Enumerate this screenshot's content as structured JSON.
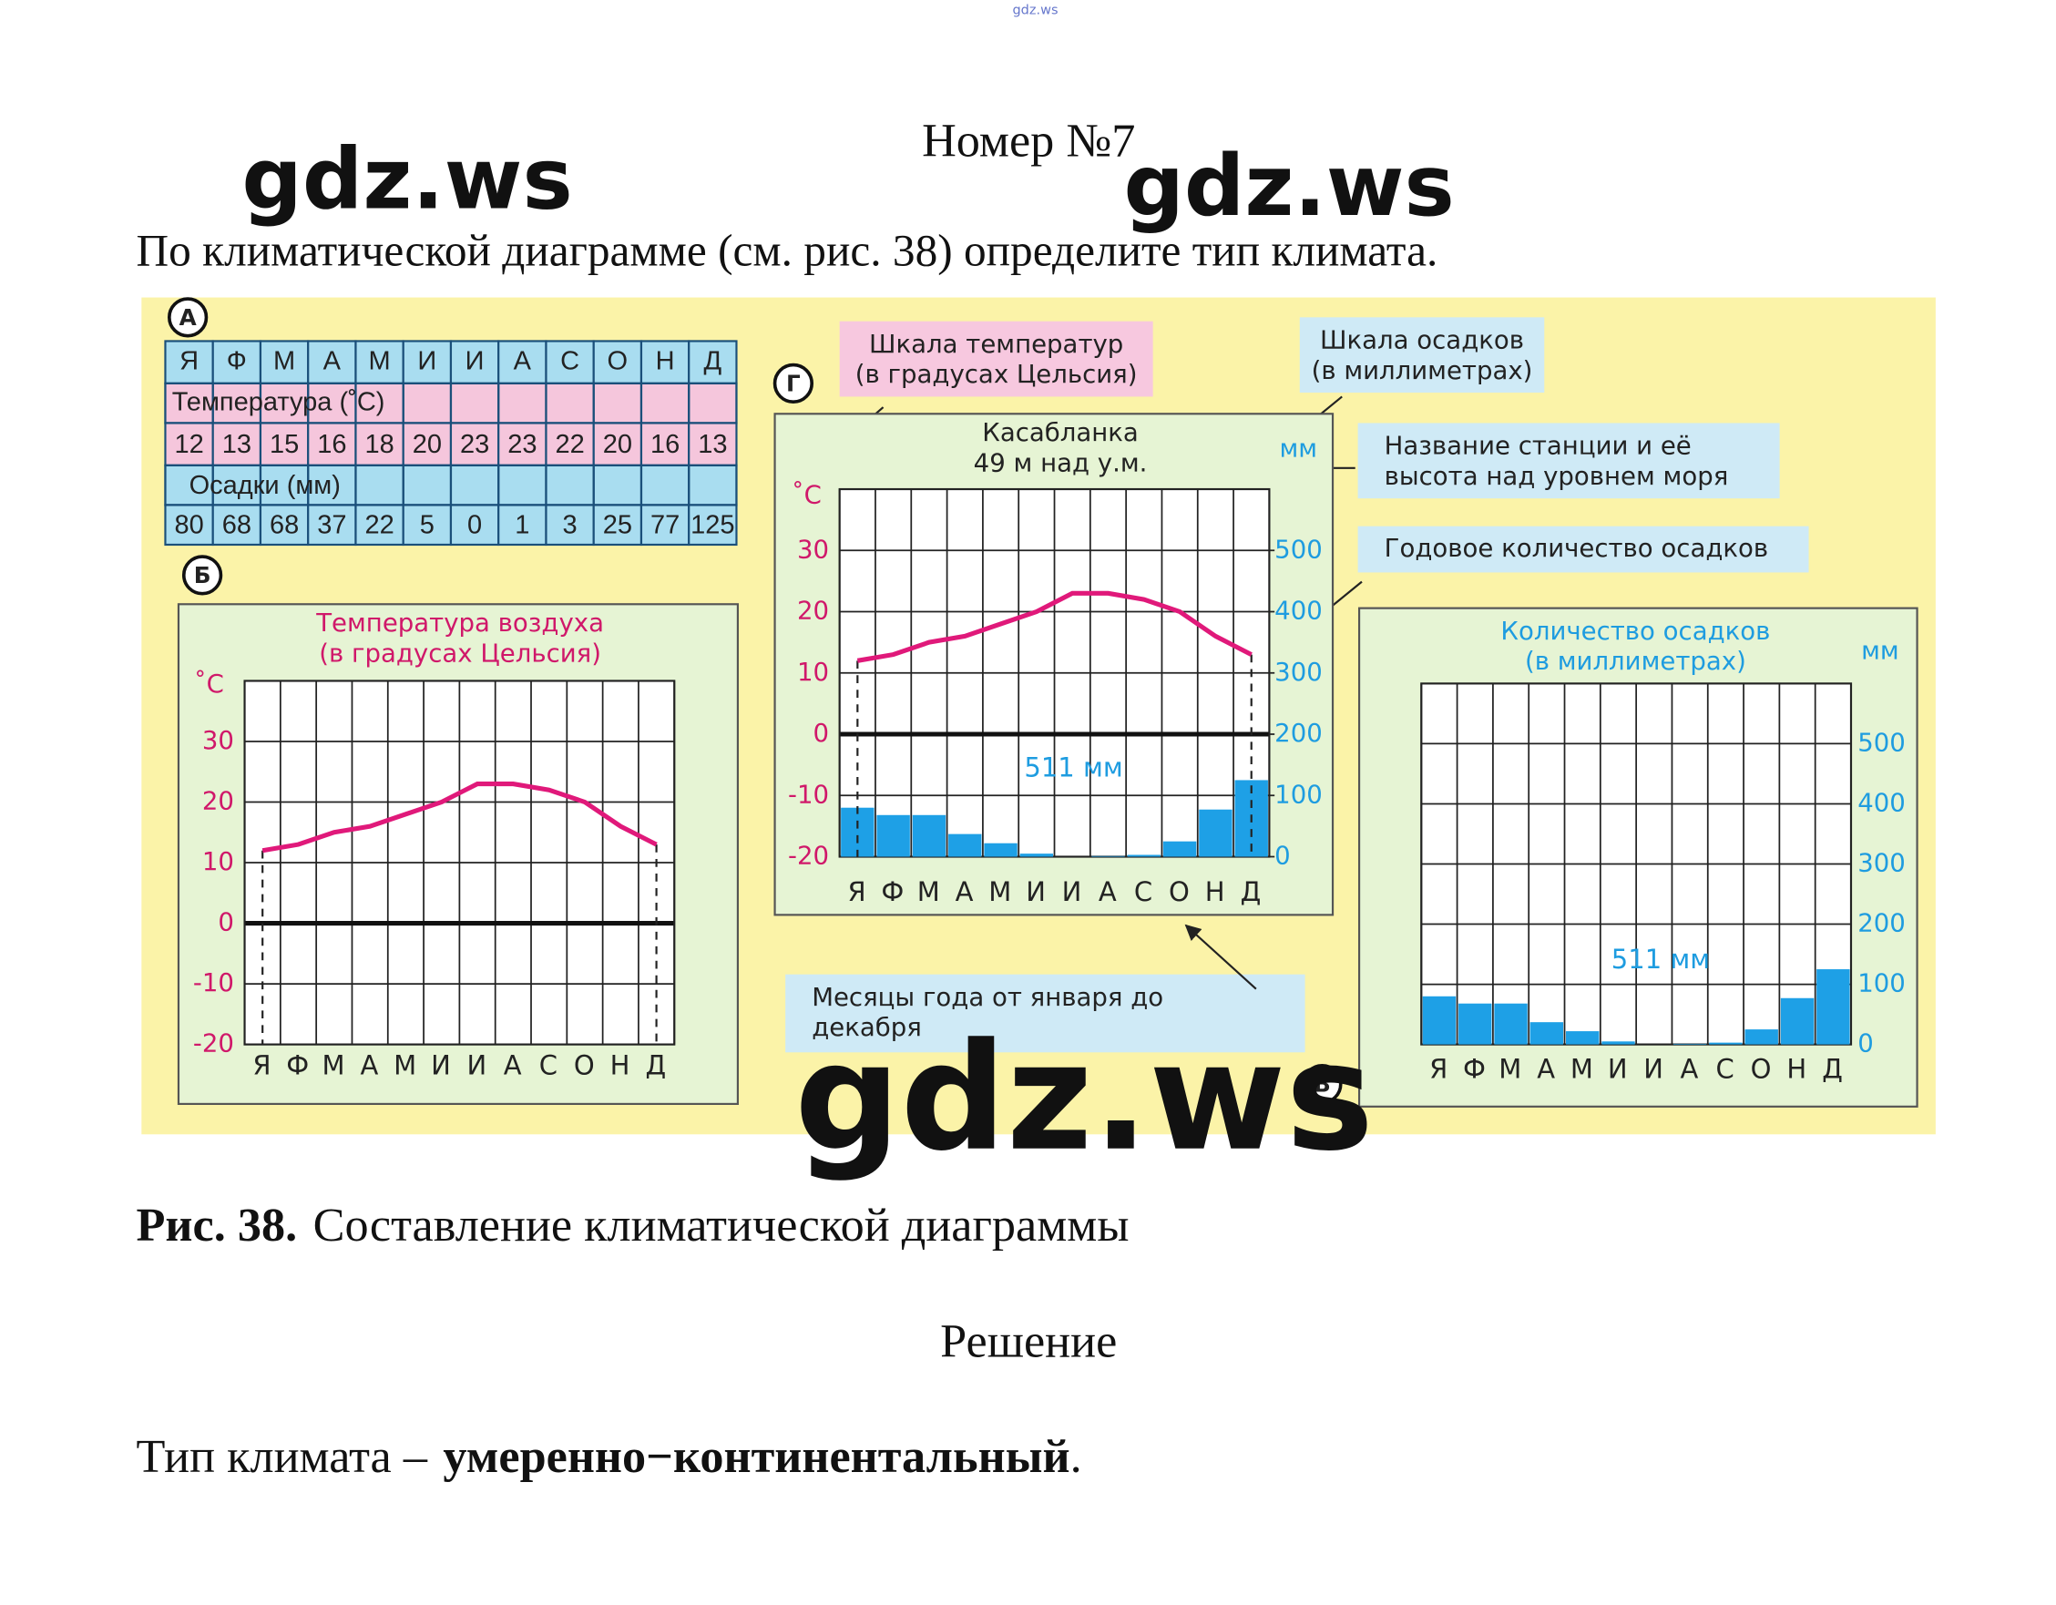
{
  "watermark": "gdz.ws",
  "header": {
    "title": "Номер №7"
  },
  "task": "По климатической диаграмме (см. рис. 38) определите тип климата.",
  "figure": {
    "panel_labels": [
      "А",
      "Б",
      "В",
      "Г"
    ],
    "table": {
      "months": [
        "Я",
        "Ф",
        "М",
        "А",
        "М",
        "И",
        "И",
        "А",
        "С",
        "О",
        "Н",
        "Д"
      ],
      "temperature_label": "Температура (˚С)",
      "temperature": [
        12,
        13,
        15,
        16,
        18,
        20,
        23,
        23,
        22,
        20,
        16,
        13
      ],
      "precipitation_label": "Осадки (мм)",
      "precipitation": [
        80,
        68,
        68,
        37,
        22,
        5,
        0,
        1,
        3,
        25,
        77,
        125
      ]
    },
    "callouts": [
      {
        "lines": [
          "Шкала температур",
          "(в градусах Цельсия)"
        ]
      },
      {
        "lines": [
          "Шкала осадков",
          "(в миллиметрах)"
        ]
      },
      {
        "lines": [
          "Название станции и её",
          "высота  над уровнем моря"
        ]
      },
      {
        "lines": [
          "Годовое  количество  осадков"
        ]
      },
      {
        "lines": [
          "Месяцы года от января до",
          "декабря"
        ]
      }
    ],
    "caption": {
      "label": "Рис. 38.",
      "text": "Составление климатической диаграммы"
    }
  },
  "chart_data": [
    {
      "type": "line",
      "title": [
        "Температура воздуха",
        "(в градусах Цельсия)"
      ],
      "y_unit": "˚С",
      "categories": [
        "Я",
        "Ф",
        "М",
        "А",
        "М",
        "И",
        "И",
        "А",
        "С",
        "О",
        "Н",
        "Д"
      ],
      "series": [
        {
          "type": "line",
          "color": "#e0197a",
          "values": [
            12,
            13,
            15,
            16,
            18,
            20,
            23,
            23,
            22,
            20,
            16,
            13
          ]
        }
      ],
      "ylim": [
        -20,
        40
      ],
      "yticks": [
        -20,
        -10,
        0,
        10,
        20,
        30
      ],
      "grid": true
    },
    {
      "type": "bar",
      "title": [
        "Количество  осадков",
        "(в  миллиметрах)"
      ],
      "y_unit": "мм",
      "yaxis_position": "right",
      "categories": [
        "Я",
        "Ф",
        "М",
        "А",
        "М",
        "И",
        "И",
        "А",
        "С",
        "О",
        "Н",
        "Д"
      ],
      "series": [
        {
          "type": "bar",
          "color": "#1ea0e6",
          "values": [
            80,
            68,
            68,
            37,
            22,
            5,
            0,
            1,
            3,
            25,
            77,
            125
          ]
        }
      ],
      "annotation": "511 мм",
      "ylim": [
        0,
        600
      ],
      "yticks": [
        0,
        100,
        200,
        300,
        400,
        500
      ],
      "grid": true
    },
    {
      "type": "combo",
      "title": [
        "Касабланка",
        "49  м над  у.м."
      ],
      "y_unit": "˚С",
      "y2_unit": "мм",
      "categories": [
        "Я",
        "Ф",
        "М",
        "А",
        "М",
        "И",
        "И",
        "А",
        "С",
        "О",
        "Н",
        "Д"
      ],
      "series": [
        {
          "type": "bar",
          "axis": "y2",
          "color": "#1ea0e6",
          "values": [
            80,
            68,
            68,
            37,
            22,
            5,
            0,
            1,
            3,
            25,
            77,
            125
          ]
        },
        {
          "type": "line",
          "color": "#e0197a",
          "values": [
            12,
            13,
            15,
            16,
            18,
            20,
            23,
            23,
            22,
            20,
            16,
            13
          ]
        }
      ],
      "annotation": "511 мм",
      "ylim": [
        -20,
        40
      ],
      "yticks": [
        -20,
        -10,
        0,
        10,
        20,
        30
      ],
      "y2lim": [
        0,
        600
      ],
      "y2ticks": [
        0,
        100,
        200,
        300,
        400,
        500
      ],
      "grid": true
    }
  ],
  "solution": {
    "heading": "Решение",
    "label": "Тип климата –",
    "answer": "умеренно−континентальный",
    "end": "."
  }
}
